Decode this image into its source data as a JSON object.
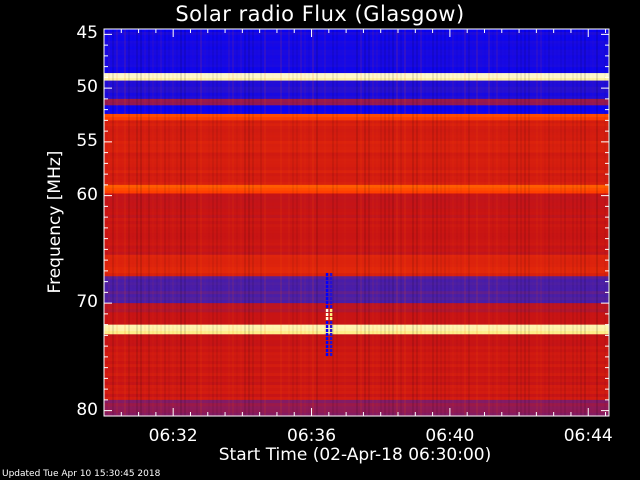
{
  "chart_data": {
    "type": "heatmap",
    "title": "Solar radio Flux (Glasgow)",
    "xlabel": "Start Time (02-Apr-18 06:30:00)",
    "ylabel": "Frequency [MHz]",
    "xlim_minutes": [
      0,
      14.6
    ],
    "ylim": [
      44.5,
      80.5
    ],
    "x_ticks": [
      {
        "minute": 2,
        "label": "06:32"
      },
      {
        "minute": 6,
        "label": "06:36"
      },
      {
        "minute": 10,
        "label": "06:40"
      },
      {
        "minute": 14,
        "label": "06:44"
      }
    ],
    "y_ticks": [
      45,
      50,
      55,
      60,
      70,
      80
    ],
    "colormap": [
      "#0000ff",
      "#5020a0",
      "#c81414",
      "#ff3c00",
      "#ffdc00",
      "#ffffff"
    ],
    "bands_mhz": [
      {
        "from": 44.5,
        "to": 48.6,
        "level": 0.05
      },
      {
        "from": 48.6,
        "to": 49.3,
        "level": 0.95
      },
      {
        "from": 49.3,
        "to": 51.0,
        "level": 0.08
      },
      {
        "from": 51.0,
        "to": 51.6,
        "level": 0.3
      },
      {
        "from": 51.6,
        "to": 52.4,
        "level": 0.02
      },
      {
        "from": 52.4,
        "to": 53.0,
        "level": 0.6
      },
      {
        "from": 53.0,
        "to": 59.0,
        "level": 0.45
      },
      {
        "from": 59.0,
        "to": 59.8,
        "level": 0.62
      },
      {
        "from": 59.8,
        "to": 65.5,
        "level": 0.4
      },
      {
        "from": 65.5,
        "to": 67.5,
        "level": 0.48
      },
      {
        "from": 67.5,
        "to": 70.0,
        "level": 0.2
      },
      {
        "from": 70.0,
        "to": 72.0,
        "level": 0.38
      },
      {
        "from": 72.0,
        "to": 72.9,
        "level": 0.92
      },
      {
        "from": 72.9,
        "to": 79.0,
        "level": 0.42
      },
      {
        "from": 79.0,
        "to": 80.5,
        "level": 0.3
      }
    ],
    "burst": {
      "minute": 6.5,
      "from_mhz": 67.2,
      "to_mhz": 74.8
    }
  },
  "footer": "Updated Tue Apr 10 15:30:45 2018"
}
